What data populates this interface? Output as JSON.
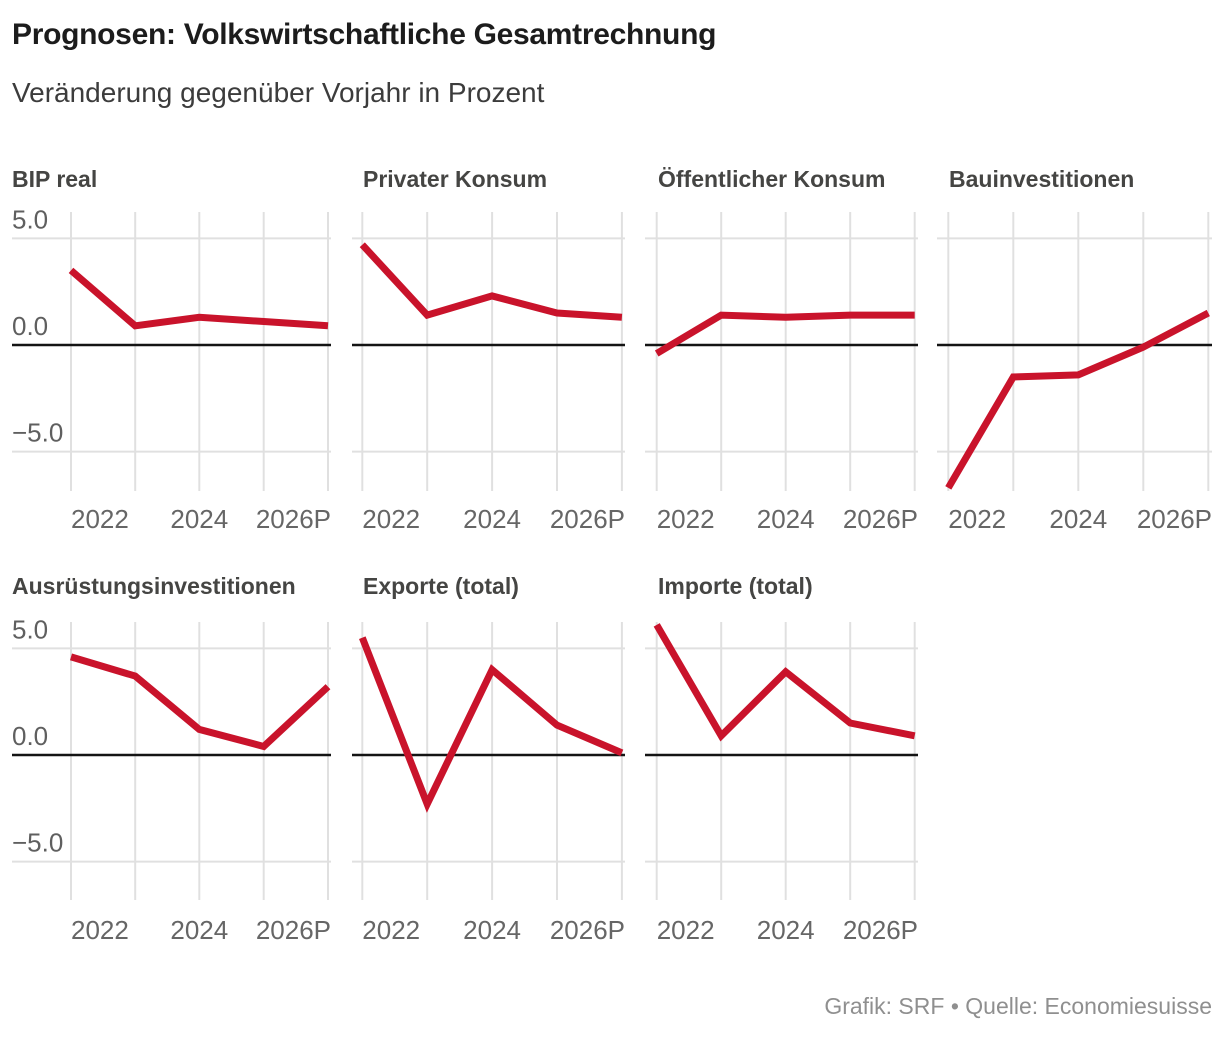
{
  "header": {
    "title": "Prognosen: Volkswirtschaftliche Gesamtrechnung",
    "subtitle": "Veränderung gegenüber Vorjahr in Prozent"
  },
  "footer": {
    "credit": "Grafik: SRF • Quelle: Economiesuisse"
  },
  "colors": {
    "line": "#c9132b",
    "grid": "#e0e0e0",
    "zero_line": "#141414",
    "facet_title_text": "#454543",
    "axis_text": "#5f5f5f",
    "x_axis_text": "#666666",
    "heading_text": "#1c1c1c",
    "subtitle_text": "#3c3c3c",
    "footer_text": "#8f8f8f",
    "background": "#ffffff"
  },
  "chart_data": {
    "type": "line",
    "layout": "small-multiples (2 rows: 4 + 3 facets)",
    "x": [
      2022,
      2023,
      2024,
      2025,
      2026
    ],
    "x_tick_labels": [
      "2022",
      "2024",
      "2026P"
    ],
    "y_ticks": [
      {
        "label": "5.0",
        "value": 5
      },
      {
        "label": "0.0",
        "value": 0
      },
      {
        "label": "−5.0",
        "value": -5
      }
    ],
    "ylim": [
      -6.9,
      6.3
    ],
    "grid": true,
    "zero_line": true,
    "legend_position": "none",
    "ylabel": "Prozent",
    "series": [
      {
        "name": "BIP real",
        "values": [
          3.5,
          0.9,
          1.3,
          1.1,
          0.9
        ]
      },
      {
        "name": "Privater Konsum",
        "values": [
          4.7,
          1.4,
          2.3,
          1.5,
          1.3
        ]
      },
      {
        "name": "Öffentlicher Konsum",
        "values": [
          -0.4,
          1.4,
          1.3,
          1.4,
          1.4
        ]
      },
      {
        "name": "Bauinvestitionen",
        "values": [
          -6.7,
          -1.5,
          -1.4,
          -0.1,
          1.5
        ]
      },
      {
        "name": "Ausrüstungsinvestitionen",
        "values": [
          4.6,
          3.7,
          1.2,
          0.4,
          3.2
        ]
      },
      {
        "name": "Exporte (total)",
        "values": [
          5.5,
          -2.3,
          4.0,
          1.4,
          0.1
        ]
      },
      {
        "name": "Importe (total)",
        "values": [
          6.1,
          0.9,
          3.9,
          1.5,
          0.9
        ]
      }
    ]
  }
}
